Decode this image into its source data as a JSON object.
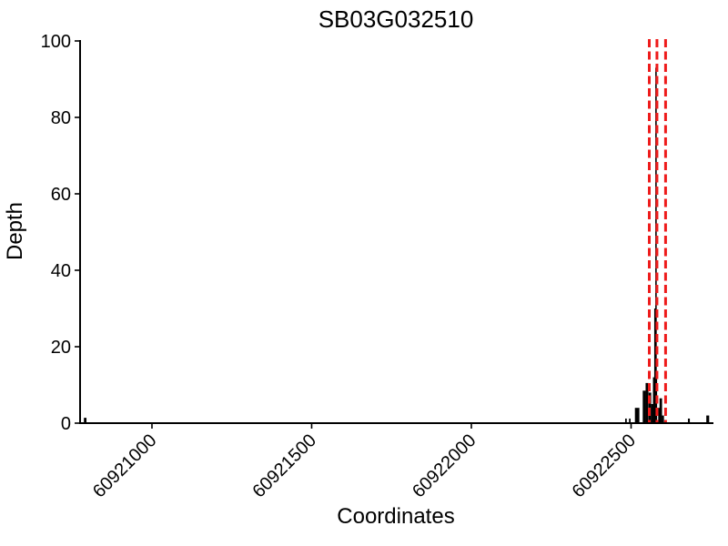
{
  "window": {
    "background_color": "#ffffff"
  },
  "chart_data": {
    "type": "bar",
    "title": "SB03G032510",
    "xlabel": "Coordinates",
    "ylabel": "Depth",
    "xlim": [
      60920775,
      60922755
    ],
    "ylim": [
      0,
      100
    ],
    "x_ticks": [
      60921000,
      60921500,
      60922000,
      60922500
    ],
    "y_ticks": [
      0,
      20,
      40,
      60,
      80,
      100
    ],
    "grid": false,
    "legend": null,
    "axis_color": "#000000",
    "bar_color": "#000000",
    "vline_color": "#ee1b1b",
    "vlines": [
      60922557,
      60922581,
      60922608
    ],
    "bars": [
      {
        "x": 60920791,
        "w": 8,
        "h": 1.4
      },
      {
        "x": 60922484,
        "w": 5,
        "h": 1.2
      },
      {
        "x": 60922496,
        "w": 5,
        "h": 1.2
      },
      {
        "x": 60922519,
        "w": 14,
        "h": 4
      },
      {
        "x": 60922541,
        "w": 9,
        "h": 8.5
      },
      {
        "x": 60922550,
        "w": 9,
        "h": 10.5
      },
      {
        "x": 60922559,
        "w": 8,
        "h": 8
      },
      {
        "x": 60922566,
        "w": 6,
        "h": 5
      },
      {
        "x": 60922575,
        "w": 13,
        "h": 12
      },
      {
        "x": 60922576,
        "w": 7,
        "h": 30
      },
      {
        "x": 60922578,
        "w": 4,
        "h": 93
      },
      {
        "x": 60922588,
        "w": 6,
        "h": 4
      },
      {
        "x": 60922593,
        "w": 8,
        "h": 6.5
      },
      {
        "x": 60922600,
        "w": 6,
        "h": 2
      },
      {
        "x": 60922681,
        "w": 6,
        "h": 1.2
      },
      {
        "x": 60922740,
        "w": 9,
        "h": 2
      }
    ]
  }
}
